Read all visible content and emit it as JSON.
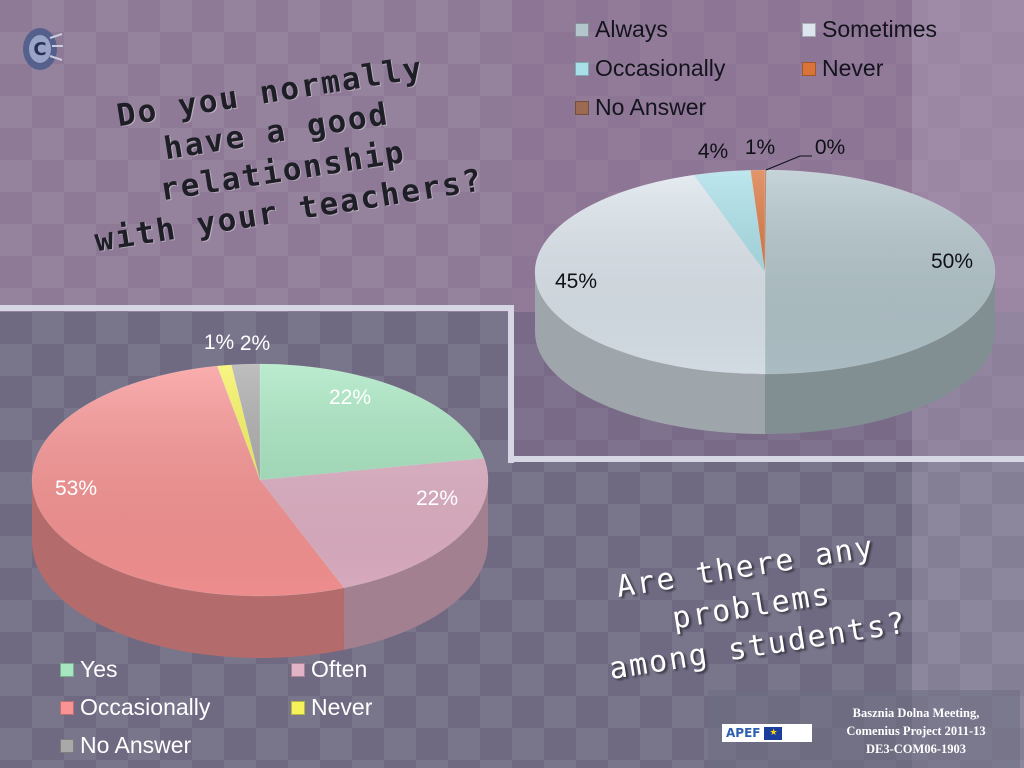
{
  "question_top": [
    "Do you normally",
    "have a good relationship",
    "with your teachers?"
  ],
  "question_bottom": [
    "Are there any problems",
    "among students?"
  ],
  "footer": {
    "lines": [
      "Basznia Dolna Meeting,",
      "Comenius Project 2011-13",
      "DE3-COM06-1903"
    ],
    "logo_text": "APEF",
    "eu_flag_icon": "eu-flag-icon"
  },
  "chart_data": [
    {
      "type": "pie",
      "title": "",
      "series": [
        {
          "values": [
            50,
            45,
            4,
            1,
            0
          ]
        }
      ],
      "categories": [
        "Always",
        "Sometimes",
        "Occasionally",
        "Never",
        "No Answer"
      ],
      "data_labels": [
        "50%",
        "45%",
        "4%",
        "1%",
        "0%"
      ],
      "colors": [
        "#b3c6cc",
        "#dde6ee",
        "#a8dfe8",
        "#d9733a",
        "#9c6a52"
      ],
      "legend_placement": "top",
      "three_d": true
    },
    {
      "type": "pie",
      "title": "",
      "series": [
        {
          "values": [
            22,
            22,
            53,
            1,
            2
          ]
        }
      ],
      "categories": [
        "Yes",
        "Often",
        "Occasionally",
        "Never",
        "No Answer"
      ],
      "data_labels": [
        "22%",
        "22%",
        "53%",
        "1%",
        "2%"
      ],
      "colors": [
        "#a6e6c0",
        "#e2b2c6",
        "#fa9494",
        "#f6f35a",
        "#a9a9a9"
      ],
      "legend_placement": "bottom",
      "three_d": true
    }
  ]
}
